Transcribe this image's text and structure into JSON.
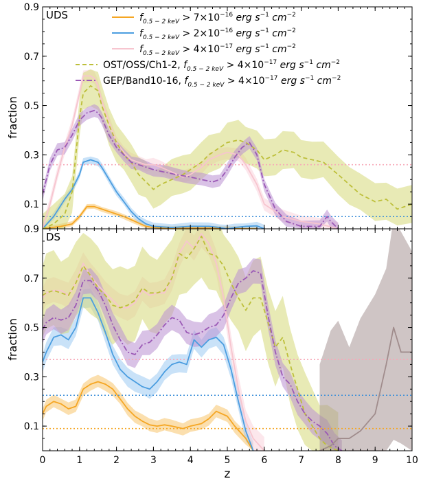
{
  "chart_data": {
    "type": "line",
    "x_label": "z",
    "y_label": "fraction",
    "x_range": [
      0,
      10
    ],
    "x_ticks": [
      0,
      1,
      2,
      3,
      4,
      5,
      6,
      7,
      8,
      9,
      10
    ],
    "y_range": [
      0,
      0.9
    ],
    "y_tick_labels": [
      "0.1",
      "0.3",
      "0.5",
      "0.7",
      "0.9"
    ],
    "y_tick_values": [
      0.1,
      0.3,
      0.5,
      0.7,
      0.9
    ],
    "legend_position": "top-right",
    "legend": [
      {
        "prefix": "f",
        "sub": "0.5 − 2 keV",
        "rel": " > 7×10",
        "exp": "−16",
        "unit1": " erg s",
        "exp2": "−1",
        "unit2": " cm",
        "exp3": "−2",
        "color": "#f5a623",
        "dash": "none",
        "band": false
      },
      {
        "prefix": "f",
        "sub": "0.5 − 2 keV",
        "rel": " > 2×10",
        "exp": "−16",
        "unit1": " erg s",
        "exp2": "−1",
        "unit2": " cm",
        "exp3": "−2",
        "color": "#4a9de0",
        "dash": "none",
        "band": false
      },
      {
        "prefix": "f",
        "sub": "0.5 − 2 keV",
        "rel": " > 4×10",
        "exp": "−17",
        "unit1": " erg s",
        "exp2": "−1",
        "unit2": " cm",
        "exp3": "−2",
        "color": "#f7c5cf",
        "dash": "none",
        "band": false
      },
      {
        "lead": "OST/OSS/Ch1-2, ",
        "prefix": "f",
        "sub": "0.5 − 2 keV",
        "rel": " > 4×10",
        "exp": "−17",
        "unit1": " erg s",
        "exp2": "−1",
        "unit2": " cm",
        "exp3": "−2",
        "color": "#bdbf3a",
        "dash": "6,4",
        "band": false
      },
      {
        "lead": "GEP/Band10-16, ",
        "prefix": "f",
        "sub": "0.5 − 2 keV",
        "rel": " > 4×10",
        "exp": "−17",
        "unit1": " erg s",
        "exp2": "−1",
        "unit2": " cm",
        "exp3": "−2",
        "color": "#9b59b6",
        "dash": "8,3,2,3",
        "band": false
      }
    ],
    "panels": [
      {
        "label": "UDS",
        "reference_lines": [
          {
            "y": 0.26,
            "color": "#f7a8b8"
          },
          {
            "y": 0.05,
            "color": "#3b8fd9"
          }
        ],
        "series": [
          {
            "name": "orange",
            "color": "#f5a623",
            "band_color": "#f7c56b",
            "dash": "none",
            "x": [
              0,
              0.5,
              0.8,
              1.0,
              1.2,
              1.4,
              1.6,
              1.8,
              2.0,
              2.2,
              2.5,
              2.8,
              3.0,
              3.5,
              4.0,
              4.5,
              5.0,
              5.5,
              5.8
            ],
            "y": [
              0,
              0.01,
              0.02,
              0.05,
              0.09,
              0.09,
              0.08,
              0.07,
              0.06,
              0.05,
              0.03,
              0.01,
              0.005,
              0.002,
              0.003,
              0.003,
              0.002,
              0,
              0
            ],
            "band": 0.008
          },
          {
            "name": "blue",
            "color": "#4a9de0",
            "band_color": "#9ccbf2",
            "dash": "none",
            "x": [
              0,
              0.3,
              0.6,
              0.8,
              1.0,
              1.1,
              1.3,
              1.5,
              1.6,
              1.8,
              2.0,
              2.2,
              2.4,
              2.6,
              2.8,
              3.0,
              3.5,
              4.0,
              4.5,
              4.8,
              5.0,
              5.2,
              5.5,
              5.8,
              6.0
            ],
            "y": [
              0,
              0.05,
              0.12,
              0.16,
              0.22,
              0.27,
              0.28,
              0.27,
              0.25,
              0.2,
              0.15,
              0.11,
              0.07,
              0.04,
              0.02,
              0.01,
              0.005,
              0.01,
              0.01,
              0.005,
              0,
              0.005,
              0.01,
              0.012,
              0
            ],
            "band": 0.012
          },
          {
            "name": "pink",
            "color": "#f7c5cf",
            "band_color": "#fad4dc",
            "dash": "none",
            "x": [
              0,
              0.2,
              0.4,
              0.6,
              0.8,
              1.0,
              1.1,
              1.3,
              1.4,
              1.5,
              1.6,
              1.8,
              2.0,
              2.2,
              2.4,
              2.6,
              2.8,
              3.0,
              3.2,
              3.5,
              3.8,
              4.0,
              4.3,
              4.5,
              4.8,
              5.0,
              5.3,
              5.5,
              5.8,
              6.0,
              6.5,
              7.0,
              7.5,
              8.0
            ],
            "y": [
              0,
              0.1,
              0.22,
              0.33,
              0.42,
              0.55,
              0.62,
              0.62,
              0.61,
              0.58,
              0.52,
              0.43,
              0.35,
              0.31,
              0.28,
              0.27,
              0.26,
              0.26,
              0.25,
              0.23,
              0.21,
              0.22,
              0.25,
              0.28,
              0.3,
              0.31,
              0.3,
              0.26,
              0.18,
              0.1,
              0.05,
              0.03,
              0.02,
              0
            ],
            "band": 0.02
          },
          {
            "name": "olive",
            "color": "#bdbf3a",
            "band_color": "#d6d878",
            "dash": "6,4",
            "x": [
              0,
              0.3,
              0.6,
              0.8,
              1.0,
              1.1,
              1.3,
              1.5,
              1.6,
              1.8,
              2.0,
              2.2,
              2.4,
              2.6,
              2.8,
              3.0,
              3.2,
              3.5,
              3.8,
              4.0,
              4.3,
              4.5,
              4.8,
              5.0,
              5.3,
              5.5,
              5.8,
              6.0,
              6.3,
              6.5,
              6.8,
              7.0,
              7.3,
              7.6,
              8.0,
              8.3,
              8.6,
              9.0,
              9.3,
              9.6,
              10.0
            ],
            "y": [
              0,
              0.02,
              0.06,
              0.15,
              0.45,
              0.55,
              0.58,
              0.56,
              0.5,
              0.42,
              0.35,
              0.3,
              0.27,
              0.22,
              0.19,
              0.16,
              0.18,
              0.2,
              0.22,
              0.24,
              0.27,
              0.3,
              0.33,
              0.35,
              0.36,
              0.35,
              0.32,
              0.28,
              0.3,
              0.32,
              0.31,
              0.29,
              0.28,
              0.27,
              0.22,
              0.18,
              0.14,
              0.11,
              0.12,
              0.08,
              0.1
            ],
            "band": 0.06
          },
          {
            "name": "purple",
            "color": "#9b59b6",
            "band_color": "#b98fd1",
            "dash": "8,3,2,3",
            "x": [
              0,
              0.2,
              0.4,
              0.6,
              0.8,
              1.0,
              1.2,
              1.4,
              1.5,
              1.6,
              1.8,
              2.0,
              2.2,
              2.4,
              2.6,
              2.8,
              3.0,
              3.3,
              3.6,
              4.0,
              4.3,
              4.6,
              4.8,
              5.0,
              5.2,
              5.4,
              5.6,
              5.8,
              6.0,
              6.3,
              6.6,
              7.0,
              7.5,
              7.7,
              7.8,
              8.0
            ],
            "y": [
              0.14,
              0.26,
              0.32,
              0.33,
              0.38,
              0.44,
              0.47,
              0.48,
              0.47,
              0.45,
              0.38,
              0.33,
              0.3,
              0.27,
              0.26,
              0.25,
              0.24,
              0.23,
              0.22,
              0.21,
              0.2,
              0.19,
              0.2,
              0.24,
              0.29,
              0.33,
              0.35,
              0.3,
              0.18,
              0.08,
              0.03,
              0.01,
              0.01,
              0.05,
              0.03,
              0
            ],
            "band": 0.02
          }
        ]
      },
      {
        "label": "DS",
        "reference_lines": [
          {
            "y": 0.37,
            "color": "#f7a8b8"
          },
          {
            "y": 0.225,
            "color": "#3b8fd9"
          },
          {
            "y": 0.09,
            "color": "#f5a623"
          }
        ],
        "series": [
          {
            "name": "orange",
            "color": "#f5a623",
            "band_color": "#f7c56b",
            "dash": "none",
            "x": [
              0,
              0.1,
              0.3,
              0.5,
              0.7,
              0.9,
              1.1,
              1.3,
              1.5,
              1.7,
              1.9,
              2.1,
              2.3,
              2.5,
              2.7,
              2.9,
              3.1,
              3.3,
              3.5,
              3.8,
              4.0,
              4.3,
              4.5,
              4.7,
              5.0,
              5.2,
              5.5,
              5.7
            ],
            "y": [
              0.15,
              0.18,
              0.2,
              0.19,
              0.17,
              0.18,
              0.25,
              0.27,
              0.28,
              0.27,
              0.25,
              0.21,
              0.17,
              0.14,
              0.12,
              0.105,
              0.1,
              0.105,
              0.1,
              0.09,
              0.1,
              0.11,
              0.13,
              0.16,
              0.14,
              0.1,
              0.05,
              0
            ],
            "band": 0.02
          },
          {
            "name": "blue",
            "color": "#4a9de0",
            "band_color": "#9ccbf2",
            "dash": "none",
            "x": [
              0,
              0.1,
              0.3,
              0.5,
              0.7,
              0.9,
              1.1,
              1.3,
              1.5,
              1.7,
              1.9,
              2.1,
              2.3,
              2.5,
              2.7,
              2.9,
              3.1,
              3.3,
              3.5,
              3.7,
              3.9,
              4.1,
              4.3,
              4.5,
              4.7,
              4.9,
              5.1,
              5.3,
              5.5,
              5.7
            ],
            "y": [
              0.36,
              0.4,
              0.46,
              0.47,
              0.45,
              0.5,
              0.62,
              0.62,
              0.56,
              0.48,
              0.39,
              0.33,
              0.3,
              0.28,
              0.26,
              0.25,
              0.28,
              0.32,
              0.35,
              0.36,
              0.35,
              0.45,
              0.42,
              0.45,
              0.46,
              0.43,
              0.33,
              0.2,
              0.08,
              0
            ],
            "band": 0.03
          },
          {
            "name": "pink",
            "color": "#f7c5cf",
            "band_color": "#fad4dc",
            "dash": "none",
            "x": [
              0,
              0.1,
              0.3,
              0.5,
              0.7,
              0.9,
              1.1,
              1.3,
              1.5,
              1.7,
              1.9,
              2.1,
              2.3,
              2.5,
              2.7,
              2.9,
              3.1,
              3.3,
              3.5,
              3.7,
              3.9,
              4.1,
              4.3,
              4.5,
              4.7,
              4.9,
              5.1,
              5.3,
              5.5,
              5.7,
              6.0
            ],
            "y": [
              0.62,
              0.64,
              0.65,
              0.65,
              0.63,
              0.68,
              0.76,
              0.71,
              0.67,
              0.64,
              0.61,
              0.58,
              0.58,
              0.6,
              0.65,
              0.63,
              0.64,
              0.64,
              0.7,
              0.8,
              0.85,
              0.82,
              0.88,
              0.84,
              0.76,
              0.62,
              0.42,
              0.25,
              0.12,
              0.05,
              0
            ],
            "band": 0.04
          },
          {
            "name": "olive",
            "color": "#bdbf3a",
            "band_color": "#d6d878",
            "dash": "6,4",
            "x": [
              0,
              0.1,
              0.3,
              0.5,
              0.7,
              0.9,
              1.1,
              1.3,
              1.5,
              1.7,
              1.9,
              2.1,
              2.3,
              2.5,
              2.7,
              2.9,
              3.1,
              3.3,
              3.5,
              3.7,
              3.9,
              4.1,
              4.3,
              4.5,
              4.7,
              4.9,
              5.1,
              5.3,
              5.5,
              5.7,
              5.9,
              6.1,
              6.3,
              6.5,
              6.7,
              6.9,
              7.1,
              7.3,
              7.5,
              7.7,
              8.0
            ],
            "y": [
              0.63,
              0.64,
              0.65,
              0.64,
              0.63,
              0.68,
              0.75,
              0.71,
              0.66,
              0.63,
              0.59,
              0.58,
              0.59,
              0.61,
              0.66,
              0.64,
              0.64,
              0.65,
              0.7,
              0.8,
              0.78,
              0.82,
              0.87,
              0.8,
              0.79,
              0.75,
              0.68,
              0.62,
              0.57,
              0.62,
              0.62,
              0.52,
              0.42,
              0.46,
              0.35,
              0.25,
              0.15,
              0.1,
              0.05,
              0.02,
              0
            ],
            "band": 0.12
          },
          {
            "name": "purple",
            "color": "#9b59b6",
            "band_color": "#b98fd1",
            "dash": "8,3,2,3",
            "x": [
              0,
              0.1,
              0.3,
              0.5,
              0.7,
              0.9,
              1.1,
              1.3,
              1.5,
              1.7,
              1.9,
              2.1,
              2.3,
              2.5,
              2.7,
              2.9,
              3.1,
              3.3,
              3.5,
              3.7,
              3.9,
              4.1,
              4.3,
              4.5,
              4.7,
              4.9,
              5.1,
              5.3,
              5.5,
              5.7,
              5.9,
              6.1,
              6.3,
              6.5,
              6.7,
              6.9,
              7.1,
              7.3,
              7.5,
              7.7,
              7.9,
              8.1
            ],
            "y": [
              0.49,
              0.52,
              0.54,
              0.53,
              0.54,
              0.59,
              0.69,
              0.69,
              0.65,
              0.59,
              0.51,
              0.45,
              0.4,
              0.39,
              0.43,
              0.44,
              0.47,
              0.51,
              0.54,
              0.53,
              0.48,
              0.47,
              0.48,
              0.5,
              0.51,
              0.55,
              0.62,
              0.68,
              0.7,
              0.73,
              0.72,
              0.55,
              0.4,
              0.3,
              0.27,
              0.2,
              0.15,
              0.12,
              0.1,
              0.07,
              0.02,
              0
            ],
            "band": 0.04
          },
          {
            "name": "grey",
            "color": "#a08c8c",
            "band_color": "#a89696",
            "dash": "none",
            "x": [
              7.5,
              7.8,
              8.0,
              8.3,
              8.6,
              9.0,
              9.3,
              9.5,
              9.7,
              10.0
            ],
            "y": [
              0,
              0.02,
              0.05,
              0.05,
              0.08,
              0.15,
              0.35,
              0.5,
              0.4,
              0.4
            ],
            "band": 0.35
          }
        ]
      }
    ]
  }
}
